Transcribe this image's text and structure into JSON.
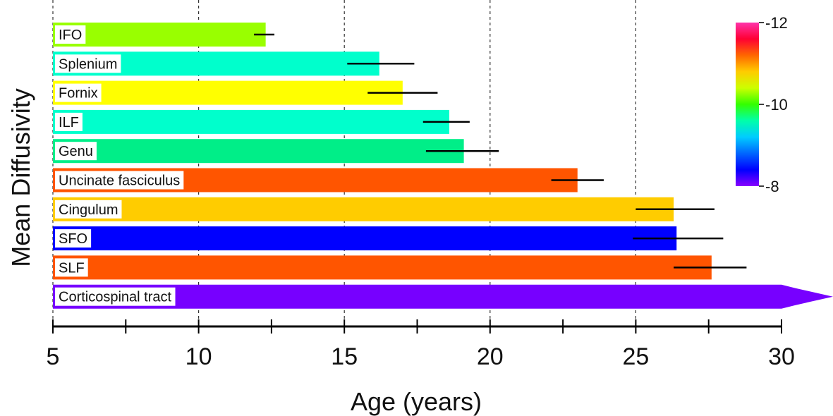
{
  "chart_data": {
    "type": "bar",
    "orientation": "horizontal",
    "xlabel": "Age (years)",
    "ylabel": "Mean Diffusivity",
    "xlim": [
      5,
      30
    ],
    "xticks": [
      5,
      10,
      15,
      20,
      25,
      30
    ],
    "grid": "vertical dashed at major ticks",
    "bars": [
      {
        "label": "IFO",
        "value": 12.3,
        "err_low": 11.9,
        "err_high": 12.6,
        "color": "#99ff00"
      },
      {
        "label": "Splenium",
        "value": 16.2,
        "err_low": 15.1,
        "err_high": 17.4,
        "color": "#00ffcc"
      },
      {
        "label": "Fornix",
        "value": 17.0,
        "err_low": 15.8,
        "err_high": 18.2,
        "color": "#ffff00"
      },
      {
        "label": "ILF",
        "value": 18.6,
        "err_low": 17.7,
        "err_high": 19.3,
        "color": "#00ffcc"
      },
      {
        "label": "Genu",
        "value": 19.1,
        "err_low": 17.8,
        "err_high": 20.3,
        "color": "#00ee88"
      },
      {
        "label": "Uncinate fasciculus",
        "value": 23.0,
        "err_low": 22.1,
        "err_high": 23.9,
        "color": "#ff5500"
      },
      {
        "label": "Cingulum",
        "value": 26.3,
        "err_low": 25.0,
        "err_high": 27.7,
        "color": "#ffcc00"
      },
      {
        "label": "SFO",
        "value": 26.4,
        "err_low": 24.9,
        "err_high": 28.0,
        "color": "#0000ff"
      },
      {
        "label": "SLF",
        "value": 27.6,
        "err_low": 26.3,
        "err_high": 28.8,
        "color": "#ff5500"
      },
      {
        "label": "Corticospinal tract",
        "value": 30,
        "extends_beyond_axis": true,
        "color": "#7700ff"
      }
    ],
    "colorbar": {
      "ticks": [
        "-12",
        "-10",
        "-8"
      ],
      "colors": [
        "#ff33aa",
        "#ff0033",
        "#ff6600",
        "#ffcc00",
        "#ccff00",
        "#33ff00",
        "#00ffaa",
        "#00ccff",
        "#0066ff",
        "#0000ff",
        "#8800ff"
      ]
    }
  }
}
